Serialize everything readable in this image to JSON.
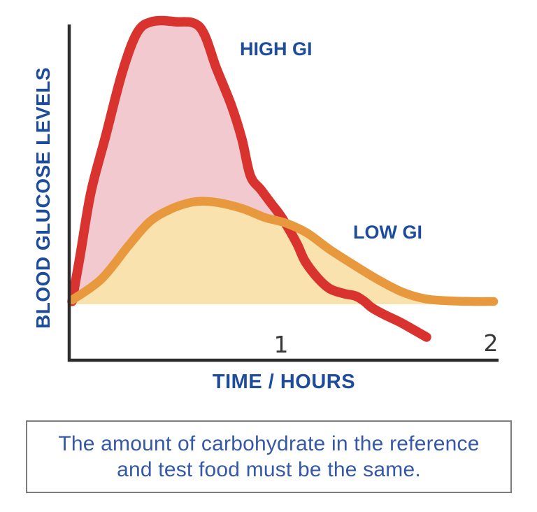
{
  "palette": {
    "high_gi_line": "#d8332f",
    "high_gi_fill": "#f2c9ce",
    "low_gi_line": "#e8993e",
    "low_gi_fill": "#fae2ae",
    "label_blue": "#1e4c9c",
    "tick_gray": "#383838",
    "axis_black": "#2d2d2d",
    "caption_blue": "#3558a8",
    "caption_border_gray": "#7d7d7d"
  },
  "labels": {
    "y_axis": "BLOOD GLUCOSE LEVELS",
    "x_axis": "TIME / HOURS",
    "high_gi": "HIGH GI",
    "low_gi": "LOW GI",
    "tick_1": "1",
    "tick_2": "2"
  },
  "caption": {
    "line1": "The amount of carbohydrate in the reference",
    "line2": "and test food must be the same."
  },
  "chart_data": {
    "type": "area",
    "title": "",
    "xlabel": "TIME / HOURS",
    "ylabel": "BLOOD GLUCOSE LEVELS",
    "x_unit": "hours",
    "y_unit": "relative blood glucose (no numeric scale shown)",
    "xlim": [
      0,
      2.05
    ],
    "ylim": [
      -15,
      105
    ],
    "x_ticks": [
      1,
      2
    ],
    "grid": false,
    "legend_position": "inline-annotations",
    "baseline_value": 0,
    "series": [
      {
        "name": "HIGH GI",
        "color": "#d8332f",
        "fill": "#f2c9ce",
        "x": [
          0.01,
          0.05,
          0.1,
          0.17,
          0.25,
          0.32,
          0.39,
          0.5,
          0.62,
          0.7,
          0.77,
          0.82,
          0.86,
          0.91,
          0.96,
          1.01,
          1.08,
          1.12,
          1.18,
          1.24,
          1.31,
          1.36,
          1.4,
          1.44,
          1.5,
          1.57,
          1.63,
          1.7
        ],
        "y": [
          1,
          18,
          40,
          60,
          83,
          97,
          101,
          101,
          99,
          84,
          71,
          59,
          46,
          41,
          36,
          31,
          22,
          15.5,
          9.5,
          5.5,
          3.75,
          3,
          1.25,
          -1.25,
          -3.75,
          -6.25,
          -8.75,
          -11.75
        ]
      },
      {
        "name": "LOW GI",
        "color": "#e8993e",
        "fill": "#fae2ae",
        "x": [
          0.01,
          0.15,
          0.28,
          0.38,
          0.48,
          0.57,
          0.64,
          0.73,
          0.83,
          0.93,
          1.03,
          1.13,
          1.24,
          1.36,
          1.47,
          1.58,
          1.69,
          1.8,
          1.92,
          2.02
        ],
        "y": [
          1.5,
          9,
          21,
          29.5,
          34,
          36.3,
          36.8,
          36,
          34,
          31,
          29,
          25.5,
          19.5,
          13.75,
          8.75,
          4.5,
          2,
          1.25,
          1,
          1
        ]
      }
    ]
  }
}
